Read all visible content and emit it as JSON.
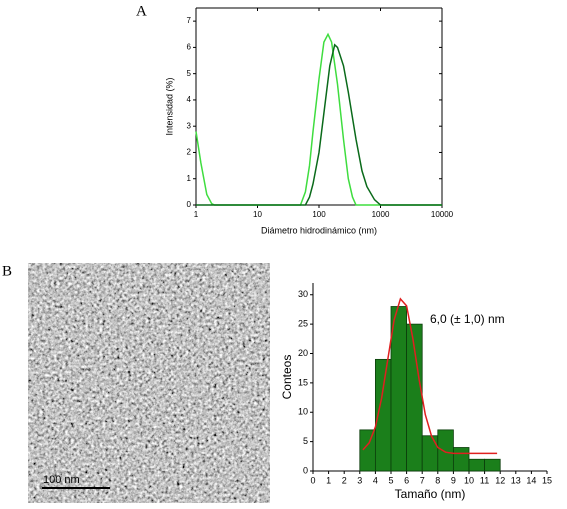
{
  "panel_labels": [
    "A",
    "B"
  ],
  "image": {
    "scale_bar": "100 nm"
  },
  "chart_data": [
    {
      "type": "line",
      "xlabel": "Diámetro hidrodinámico (nm)",
      "ylabel": "Intensidad (%)",
      "log_x": true,
      "xlim": [
        1,
        10000
      ],
      "xticks": [
        1,
        10,
        100,
        1000,
        10000
      ],
      "ylim": [
        0,
        7.5
      ],
      "yticks": [
        0,
        1,
        2,
        3,
        4,
        5,
        6,
        7
      ],
      "series": [
        {
          "color": "#3fdd3f",
          "x": [
            1,
            1.2,
            1.5,
            1.8,
            2,
            50,
            60,
            70,
            80,
            100,
            120,
            140,
            160,
            200,
            250,
            300,
            350,
            400,
            10000
          ],
          "values": [
            2.8,
            1.6,
            0.4,
            0.05,
            0,
            0,
            0.5,
            1.5,
            2.8,
            4.8,
            6.2,
            6.5,
            6.2,
            4.6,
            2.5,
            1.0,
            0.3,
            0,
            0
          ]
        },
        {
          "color": "#0a6a1a",
          "x": [
            1,
            60,
            70,
            80,
            100,
            120,
            150,
            180,
            200,
            250,
            300,
            400,
            500,
            600,
            800,
            1000,
            10000
          ],
          "values": [
            0,
            0,
            0.3,
            0.8,
            2.0,
            3.5,
            5.3,
            6.1,
            6.0,
            5.3,
            4.3,
            2.5,
            1.3,
            0.7,
            0.2,
            0,
            0
          ]
        }
      ]
    },
    {
      "type": "histogram",
      "xlabel": "Tamaño (nm)",
      "ylabel": "Conteos",
      "annotation": "6,0 (± 1,0) nm",
      "bins": [
        3,
        4,
        5,
        6,
        7,
        8,
        9,
        10,
        11,
        12
      ],
      "values": [
        7,
        19,
        28,
        25,
        6,
        7,
        4,
        2,
        2
      ],
      "color": "#1b7f1b",
      "xlim": [
        0,
        15
      ],
      "xticks": [
        0,
        1,
        2,
        3,
        4,
        5,
        6,
        7,
        8,
        9,
        10,
        11,
        12,
        13,
        14,
        15
      ],
      "ylim": [
        0,
        32
      ],
      "yticks": [
        0,
        5,
        10,
        15,
        20,
        25,
        30
      ],
      "fit": {
        "color": "#e02020",
        "x": [
          3.2,
          3.6,
          4.0,
          4.4,
          4.8,
          5.2,
          5.6,
          6.0,
          6.4,
          6.8,
          7.2,
          7.6,
          8.0,
          8.5,
          9,
          10,
          11,
          11.8
        ],
        "values": [
          3.6,
          4.8,
          7.5,
          12.4,
          19.1,
          25.7,
          29.3,
          28.1,
          22.6,
          15.6,
          9.6,
          5.9,
          4.0,
          3.2,
          3.0,
          3.0,
          3.0,
          3.0
        ]
      }
    }
  ]
}
